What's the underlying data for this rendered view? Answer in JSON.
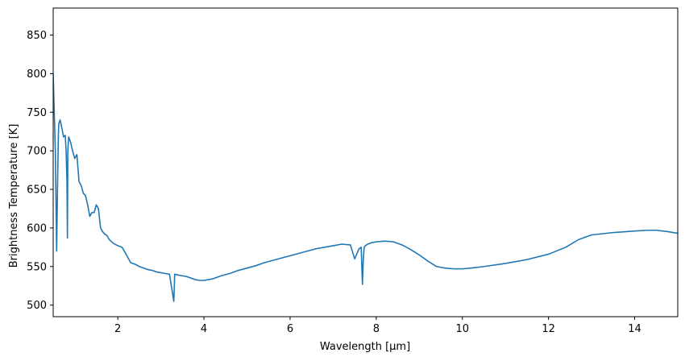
{
  "chart_data": {
    "type": "line",
    "title": "",
    "xlabel": "Wavelength [µm]",
    "ylabel": "Brightness Temperature [K]",
    "xlim": [
      0.5,
      15.0
    ],
    "ylim": [
      485,
      885
    ],
    "xticks": [
      2,
      4,
      6,
      8,
      10,
      12,
      14
    ],
    "xtick_labels": [
      "2",
      "4",
      "6",
      "8",
      "10",
      "12",
      "14"
    ],
    "yticks": [
      500,
      550,
      600,
      650,
      700,
      750,
      800,
      850
    ],
    "ytick_labels": [
      "500",
      "550",
      "600",
      "650",
      "700",
      "750",
      "800",
      "850"
    ],
    "grid": false,
    "legend": "none",
    "line_color": "#1f77b4",
    "series": [
      {
        "x": [
          0.5,
          0.52,
          0.55,
          0.58,
          0.6,
          0.62,
          0.63,
          0.66,
          0.7,
          0.74,
          0.78,
          0.8,
          0.82,
          0.83,
          0.84,
          0.86,
          0.9,
          0.95,
          1.0,
          1.05,
          1.1,
          1.15,
          1.2,
          1.25,
          1.3,
          1.35,
          1.4,
          1.45,
          1.5,
          1.55,
          1.6,
          1.65,
          1.7,
          1.75,
          1.8,
          1.9,
          2.0,
          2.1,
          2.2,
          2.3,
          2.4,
          2.5,
          2.6,
          2.7,
          2.8,
          2.9,
          3.0,
          3.1,
          3.2,
          3.3,
          3.31,
          3.32,
          3.4,
          3.5,
          3.6,
          3.7,
          3.8,
          3.9,
          4.0,
          4.2,
          4.4,
          4.6,
          4.8,
          5.0,
          5.2,
          5.4,
          5.6,
          5.8,
          6.0,
          6.2,
          6.4,
          6.6,
          6.8,
          7.0,
          7.2,
          7.4,
          7.5,
          7.6,
          7.65,
          7.68,
          7.7,
          7.72,
          7.75,
          7.8,
          7.9,
          8.0,
          8.2,
          8.4,
          8.6,
          8.8,
          9.0,
          9.2,
          9.4,
          9.6,
          9.8,
          10.0,
          10.2,
          10.5,
          11.0,
          11.5,
          12.0,
          12.4,
          12.7,
          13.0,
          13.5,
          14.0,
          14.3,
          14.5,
          14.8,
          15.0
        ],
        "y": [
          800,
          760,
          700,
          570,
          650,
          720,
          735,
          740,
          730,
          718,
          720,
          700,
          660,
          587,
          700,
          718,
          712,
          700,
          690,
          695,
          660,
          655,
          645,
          642,
          630,
          615,
          620,
          620,
          630,
          625,
          600,
          595,
          592,
          590,
          585,
          580,
          577,
          575,
          565,
          555,
          553,
          550,
          548,
          546,
          545,
          543,
          542,
          541,
          540,
          505,
          520,
          540,
          539,
          538,
          537,
          535,
          533,
          532,
          532,
          534,
          538,
          541,
          545,
          548,
          551,
          555,
          558,
          561,
          564,
          567,
          570,
          573,
          575,
          577,
          579,
          578,
          560,
          573,
          575,
          527,
          560,
          575,
          577,
          579,
          581,
          582,
          583,
          582,
          578,
          572,
          565,
          557,
          550,
          548,
          547,
          547,
          548,
          550,
          554,
          559,
          566,
          575,
          585,
          591,
          594,
          596,
          597,
          597,
          595,
          593
        ]
      }
    ]
  }
}
